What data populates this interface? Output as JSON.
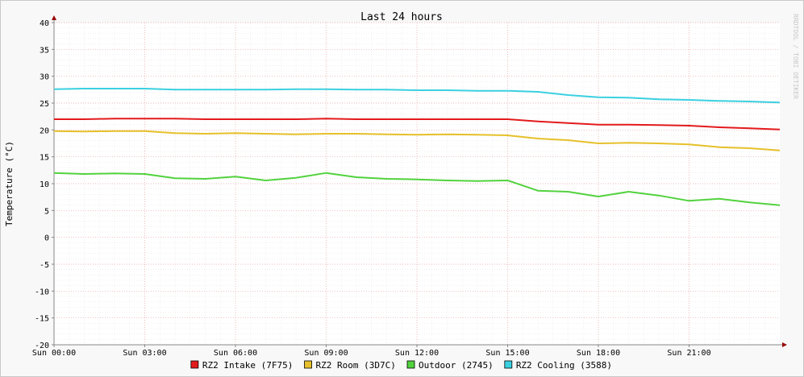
{
  "chart_data": {
    "type": "line",
    "title": "Last 24 hours",
    "ylabel": "Temperature (°C)",
    "xlabel": "",
    "watermark": "RRDTOOL / TOBI OETIKER",
    "ylim": [
      -20,
      40
    ],
    "yticks": [
      -20,
      -15,
      -10,
      -5,
      0,
      5,
      10,
      15,
      20,
      25,
      30,
      35,
      40
    ],
    "xlim_hours": [
      0,
      24
    ],
    "xticks": [
      {
        "hour": 0,
        "label": "Sun 00:00"
      },
      {
        "hour": 3,
        "label": "Sun 03:00"
      },
      {
        "hour": 6,
        "label": "Sun 06:00"
      },
      {
        "hour": 9,
        "label": "Sun 09:00"
      },
      {
        "hour": 12,
        "label": "Sun 12:00"
      },
      {
        "hour": 15,
        "label": "Sun 15:00"
      },
      {
        "hour": 18,
        "label": "Sun 18:00"
      },
      {
        "hour": 21,
        "label": "Sun 21:00"
      }
    ],
    "grid": true,
    "legend_position": "bottom",
    "x": [
      0,
      1,
      2,
      3,
      4,
      5,
      6,
      7,
      8,
      9,
      10,
      11,
      12,
      13,
      14,
      15,
      16,
      17,
      18,
      19,
      20,
      21,
      22,
      23,
      24
    ],
    "series": [
      {
        "name": "RZ2 Intake (7F75)",
        "color": "#e31a1c",
        "values": [
          22.0,
          22.0,
          22.1,
          22.1,
          22.1,
          22.0,
          22.0,
          22.0,
          22.0,
          22.1,
          22.0,
          22.0,
          22.0,
          22.0,
          22.0,
          22.0,
          21.6,
          21.3,
          21.0,
          21.0,
          20.9,
          20.8,
          20.5,
          20.3,
          20.1
        ]
      },
      {
        "name": "RZ2 Room (3D7C)",
        "color": "#e6c02a",
        "values": [
          19.8,
          19.7,
          19.8,
          19.8,
          19.4,
          19.3,
          19.4,
          19.3,
          19.2,
          19.3,
          19.3,
          19.2,
          19.1,
          19.2,
          19.1,
          19.0,
          18.4,
          18.1,
          17.5,
          17.6,
          17.5,
          17.3,
          16.8,
          16.6,
          16.2
        ]
      },
      {
        "name": "Outdoor (2745)",
        "color": "#52d23e",
        "values": [
          12.0,
          11.8,
          11.9,
          11.8,
          11.0,
          10.9,
          11.3,
          10.6,
          11.1,
          12.0,
          11.2,
          10.9,
          10.8,
          10.6,
          10.5,
          10.6,
          8.7,
          8.5,
          7.6,
          8.5,
          7.8,
          6.8,
          7.2,
          6.5,
          6.0
        ]
      },
      {
        "name": "RZ2 Cooling (3588)",
        "color": "#3ad0e0",
        "values": [
          27.6,
          27.7,
          27.7,
          27.7,
          27.5,
          27.5,
          27.5,
          27.5,
          27.6,
          27.6,
          27.5,
          27.5,
          27.4,
          27.4,
          27.3,
          27.3,
          27.1,
          26.5,
          26.1,
          26.0,
          25.7,
          25.6,
          25.4,
          25.3,
          25.1
        ]
      }
    ]
  }
}
